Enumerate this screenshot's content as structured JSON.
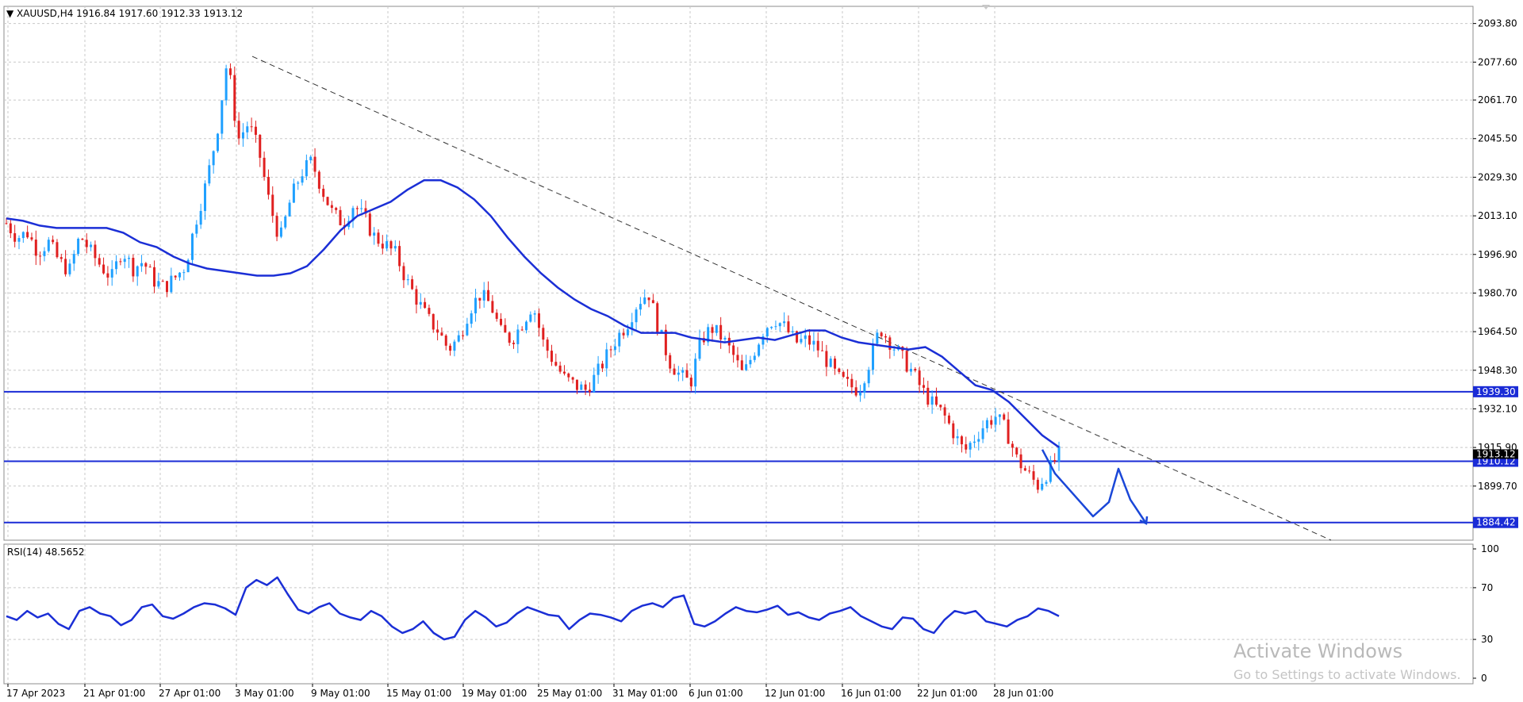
{
  "window": {
    "symbol_line": "▼ XAUUSD,H4  1916.84 1917.60 1912.33 1913.12"
  },
  "chart_data": [
    {
      "type": "candlestick",
      "symbol": "XAUUSD",
      "timeframe": "H4",
      "ohlc_current": {
        "open": 1916.84,
        "high": 1917.6,
        "low": 1912.33,
        "close": 1913.12
      },
      "ylim": [
        1877.0,
        2101.0
      ],
      "y_ticks": [
        2093.8,
        2077.6,
        2061.7,
        2045.5,
        2029.3,
        2013.1,
        1996.9,
        1980.7,
        1964.5,
        1948.3,
        1932.1,
        1915.9,
        1899.7
      ],
      "y_tick_labels": [
        "2093.80",
        "2077.60",
        "2061.70",
        "2045.50",
        "2029.30",
        "2013.10",
        "1996.90",
        "1980.70",
        "1964.50",
        "1948.30",
        "1932.10",
        "1915.90",
        "1899.70"
      ],
      "x_tick_labels": [
        "17 Apr 2023",
        "21 Apr 01:00",
        "27 Apr 01:00",
        "3 May 01:00",
        "9 May 01:00",
        "15 May 01:00",
        "19 May 01:00",
        "25 May 01:00",
        "31 May 01:00",
        "6 Jun 01:00",
        "12 Jun 01:00",
        "16 Jun 01:00",
        "22 Jun 01:00",
        "28 Jun 01:00"
      ],
      "close_path": [
        2010,
        2004,
        2006,
        1998,
        2002,
        1994,
        1990,
        2005,
        1998,
        1992,
        1987,
        1999,
        1991,
        1994,
        1986,
        1983,
        1987,
        1992,
        2011,
        2027,
        2048,
        2079,
        2045,
        2052,
        2040,
        2018,
        2003,
        2020,
        2031,
        2036,
        2024,
        2014,
        2010,
        2018,
        2012,
        2004,
        2001,
        1997,
        1986,
        1978,
        1970,
        1965,
        1957,
        1962,
        1974,
        1980,
        1976,
        1964,
        1961,
        1968,
        1976,
        1960,
        1952,
        1945,
        1942,
        1940,
        1946,
        1954,
        1962,
        1968,
        1977,
        1981,
        1965,
        1952,
        1946,
        1943,
        1961,
        1966,
        1962,
        1955,
        1946,
        1956,
        1966,
        1970,
        1966,
        1960,
        1961,
        1958,
        1952,
        1945,
        1942,
        1940,
        1952,
        1966,
        1960,
        1954,
        1948,
        1940,
        1934,
        1930,
        1922,
        1914,
        1920,
        1926,
        1929,
        1923,
        1911,
        1905,
        1900,
        1906,
        1913
      ],
      "moving_average": [
        2012,
        2011,
        2009,
        2008,
        2008,
        2008,
        2008,
        2006,
        2002,
        2000,
        1996,
        1993,
        1991,
        1990,
        1989,
        1988,
        1988,
        1989,
        1992,
        1999,
        2007,
        2013,
        2016,
        2019,
        2024,
        2028,
        2028,
        2025,
        2020,
        2013,
        2004,
        1996,
        1989,
        1983,
        1978,
        1974,
        1971,
        1967,
        1964,
        1964,
        1964,
        1962,
        1961,
        1960,
        1961,
        1962,
        1961,
        1963,
        1965,
        1965,
        1962,
        1960,
        1959,
        1958,
        1957,
        1958,
        1954,
        1948,
        1942,
        1940,
        1935,
        1928,
        1921,
        1916
      ],
      "series": [
        {
          "name": "",
          "type": "candles"
        },
        {
          "name": "",
          "type": "moving-average"
        }
      ],
      "horizontal_levels": [
        {
          "value": 1939.3,
          "label": "1939.30"
        },
        {
          "value": 1910.12,
          "label": "1910.12"
        },
        {
          "value": 1884.42,
          "label": "1884.42"
        }
      ],
      "current_price_label": "1913.12",
      "trendline": {
        "from": {
          "x_index": 58,
          "y": 2080
        },
        "to": {
          "x_index": 307,
          "y": 1877
        }
      },
      "forecast_path": [
        1915,
        1905,
        1887,
        1893,
        1907,
        1894,
        1884
      ],
      "grid": true,
      "colors": {
        "up": "#1fa0ff",
        "down": "#e02020",
        "ma": "#1b2fd6",
        "level": "#1a2bd6",
        "grid": "#c8c8c8",
        "forecast": "#1a47d8"
      }
    },
    {
      "type": "line",
      "title": "RSI(14) 48.5652",
      "ylim": [
        0,
        100
      ],
      "y_ticks": [
        0,
        30,
        70,
        100
      ],
      "y_tick_labels": [
        "0",
        "30",
        "70",
        "100"
      ],
      "values": [
        48,
        45,
        52,
        47,
        50,
        42,
        38,
        52,
        55,
        50,
        48,
        41,
        45,
        55,
        57,
        48,
        46,
        50,
        55,
        58,
        57,
        54,
        49,
        70,
        76,
        72,
        78,
        65,
        53,
        50,
        55,
        58,
        50,
        47,
        45,
        52,
        48,
        40,
        35,
        38,
        44,
        35,
        30,
        32,
        45,
        52,
        47,
        40,
        43,
        50,
        55,
        52,
        49,
        48,
        38,
        45,
        50,
        49,
        47,
        44,
        52,
        56,
        58,
        55,
        62,
        64,
        42,
        40,
        44,
        50,
        55,
        52,
        51,
        53,
        56,
        49,
        51,
        47,
        45,
        50,
        52,
        55,
        48,
        44,
        40,
        38,
        47,
        46,
        38,
        35,
        45,
        52,
        50,
        52,
        44,
        42,
        40,
        45,
        48,
        54,
        52,
        48
      ]
    }
  ],
  "watermark": {
    "title": "Activate Windows",
    "subtitle": "Go to Settings to activate Windows."
  }
}
